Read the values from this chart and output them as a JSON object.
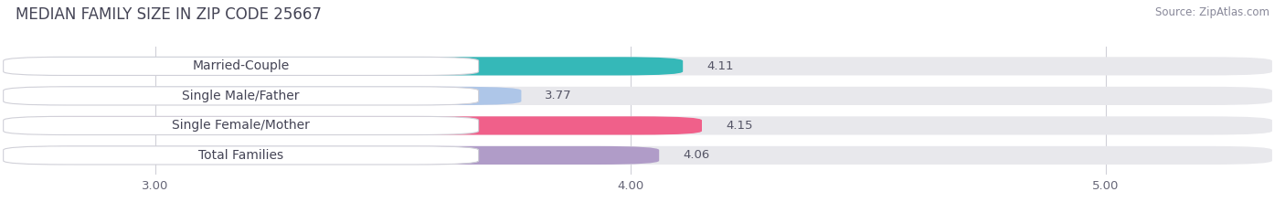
{
  "title": "MEDIAN FAMILY SIZE IN ZIP CODE 25667",
  "source": "Source: ZipAtlas.com",
  "categories": [
    "Married-Couple",
    "Single Male/Father",
    "Single Female/Mother",
    "Total Families"
  ],
  "values": [
    4.11,
    3.77,
    4.15,
    4.06
  ],
  "bar_colors": [
    "#35b8b8",
    "#aec6e8",
    "#f0608a",
    "#b09cc8"
  ],
  "xlim": [
    2.7,
    5.35
  ],
  "xticks": [
    3.0,
    4.0,
    5.0
  ],
  "xtick_labels": [
    "3.00",
    "4.00",
    "5.00"
  ],
  "bar_height": 0.62,
  "background_color": "#ffffff",
  "bar_bg_color": "#e8e8ec",
  "title_fontsize": 12,
  "source_fontsize": 8.5,
  "label_fontsize": 10,
  "value_fontsize": 9.5
}
